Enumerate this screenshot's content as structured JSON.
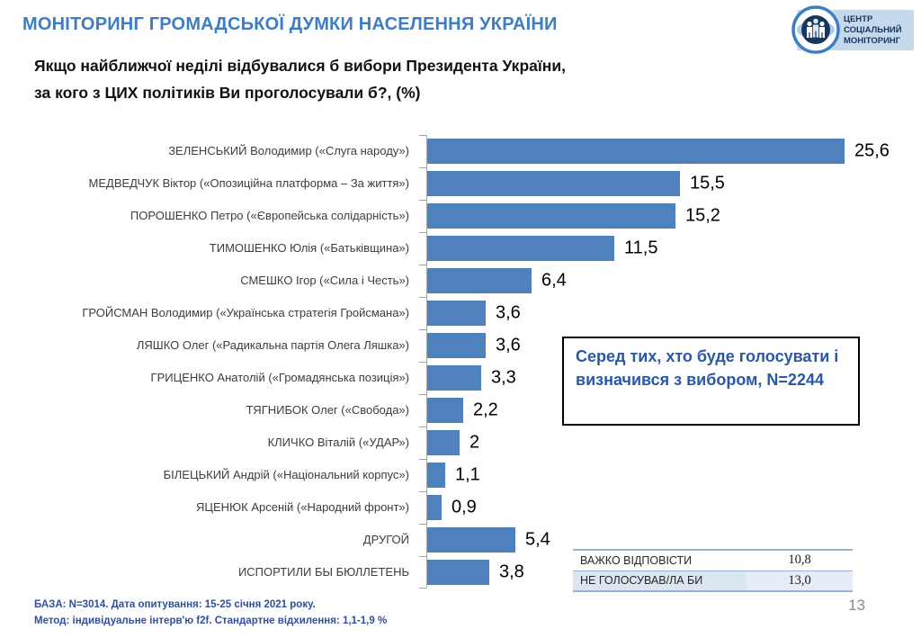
{
  "header": {
    "title": "МОНІТОРИНГ ГРОМАДСЬКОЇ ДУМКИ НАСЕЛЕННЯ УКРАЇНИ",
    "logo": {
      "line1": "ЦЕНТР",
      "line2": "СОЦІАЛЬНИЙ",
      "line3": "МОНІТОРИНГ"
    }
  },
  "question": {
    "line1": "Якщо найближчої неділі відбувалися б вибори Президента України,",
    "line2": "за кого з  ЦИХ політиків Ви проголосували б?,  (%)"
  },
  "chart_data": {
    "type": "bar",
    "orientation": "horizontal",
    "title": "Якщо найближчої неділі відбувалися б вибори Президента України, за кого з ЦИХ політиків Ви проголосували б?, (%)",
    "categories": [
      "ЗЕЛЕНСЬКИЙ Володимир («Слуга народу»)",
      "МЕДВЕДЧУК Віктор («Опозиційна платформа – За життя»)",
      "ПОРОШЕНКО Петро («Європейська солідарність»)",
      "ТИМОШЕНКО Юлія («Батьківщина»)",
      "СМЕШКО Ігор («Сила і Честь»)",
      "ГРОЙСМАН Володимир («Українська стратегія Гройсмана»)",
      "ЛЯШКО Олег («Радикальна партія Олега Ляшка»)",
      "ГРИЦЕНКО Анатолій («Громадянська позиція»)",
      "ТЯГНИБОК Олег («Свобода»)",
      "КЛИЧКО Віталій («УДАР»)",
      "БІЛЕЦЬКИЙ Андрій («Національний корпус»)",
      "ЯЦЕНЮК Арсеній («Народний фронт»)",
      "ДРУГОЙ",
      "ИСПОРТИЛИ БЫ БЮЛЛЕТЕНЬ"
    ],
    "values": [
      25.6,
      15.5,
      15.2,
      11.5,
      6.4,
      3.6,
      3.6,
      3.3,
      2.2,
      2,
      1.1,
      0.9,
      5.4,
      3.8
    ],
    "value_labels": [
      "25,6",
      "15,5",
      "15,2",
      "11,5",
      "6,4",
      "3,6",
      "3,6",
      "3,3",
      "2,2",
      "2",
      "1,1",
      "0,9",
      "5,4",
      "3,8"
    ],
    "xlim": [
      0,
      26
    ],
    "bar_color": "#4f81bd",
    "grid": false,
    "legend": false
  },
  "annotation": {
    "text": "Серед тих, хто буде голосувати і визначився з вибором, N=2244"
  },
  "side_table": {
    "rows": [
      {
        "label": "ВАЖКО ВІДПОВІСТИ",
        "value": "10,8"
      },
      {
        "label": "НЕ ГОЛОСУВАВ/ЛА БИ",
        "value": "13,0"
      }
    ]
  },
  "footer": {
    "line1": "БАЗА: N=3014. Дата опитування: 15-25 січня 2021 року.",
    "line2": "Метод: індивідуальне інтерв'ю f2f. Стандартне відхилення: 1,1-1,9 %",
    "page": "13"
  }
}
